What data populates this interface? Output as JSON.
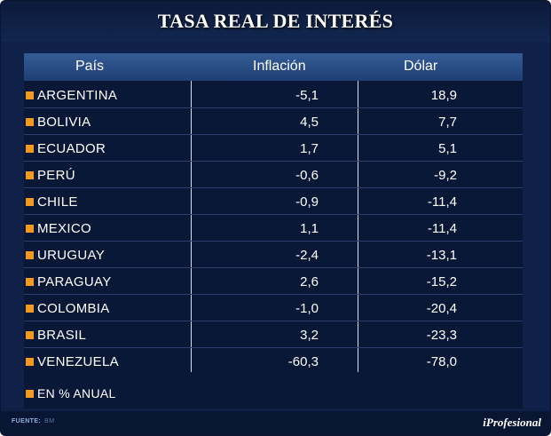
{
  "title": "TASA REAL DE INTERÉS",
  "chart_data": {
    "type": "table",
    "title": "TASA REAL DE INTERÉS",
    "columns": [
      "País",
      "Inflación",
      "Dólar"
    ],
    "rows": [
      {
        "country": "ARGENTINA",
        "inflacion": "-5,1",
        "dolar": "18,9"
      },
      {
        "country": "BOLIVIA",
        "inflacion": "4,5",
        "dolar": "7,7"
      },
      {
        "country": "ECUADOR",
        "inflacion": "1,7",
        "dolar": "5,1"
      },
      {
        "country": "PERÚ",
        "inflacion": "-0,6",
        "dolar": "-9,2"
      },
      {
        "country": "CHILE",
        "inflacion": "-0,9",
        "dolar": "-11,4"
      },
      {
        "country": "MEXICO",
        "inflacion": "1,1",
        "dolar": "-11,4"
      },
      {
        "country": "URUGUAY",
        "inflacion": "-2,4",
        "dolar": "-13,1"
      },
      {
        "country": "PARAGUAY",
        "inflacion": "2,6",
        "dolar": "-15,2"
      },
      {
        "country": "COLOMBIA",
        "inflacion": "-1,0",
        "dolar": "-20,4"
      },
      {
        "country": "BRASIL",
        "inflacion": "3,2",
        "dolar": "-23,3"
      },
      {
        "country": "VENEZUELA",
        "inflacion": "-60,3",
        "dolar": "-78,0"
      }
    ],
    "note": "EN % ANUAL"
  },
  "footer": {
    "source_label": "FUENTE:",
    "source_value": "BM",
    "brand": "iProfesional"
  },
  "colors": {
    "background": "#0f2148",
    "header": "#2a4c85",
    "bullet": "#f39a1e",
    "text": "#ffffff"
  }
}
